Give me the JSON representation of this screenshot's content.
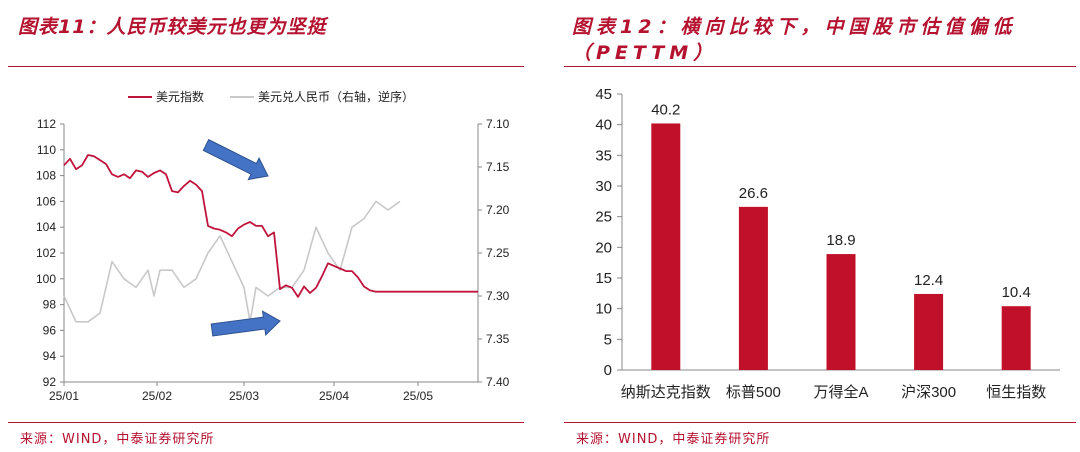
{
  "left": {
    "title": "图表11：人民币较美元也更为坚挺",
    "source": "来源：WIND，中泰证券研究所"
  },
  "right": {
    "title": "图表12：横向比较下，中国股市估值偏低（PETTM）",
    "source": "来源：WIND，中泰证券研究所"
  },
  "colors": {
    "accent": "#b5122f",
    "usd_index": "#c0143c",
    "usdcny": "#c8c8c8",
    "bar": "#c0102a",
    "arrow": "#4472c4"
  },
  "chart_data": [
    {
      "type": "line",
      "title": "",
      "xlabel": "",
      "ylabel": "",
      "x_tick_labels": [
        "25/01",
        "25/02",
        "25/03",
        "25/04",
        "25/05"
      ],
      "ylim": [
        92,
        112
      ],
      "yticks": [
        92,
        94,
        96,
        98,
        100,
        102,
        104,
        106,
        108,
        110,
        112
      ],
      "y2lim": [
        7.1,
        7.4
      ],
      "y2_inverted": true,
      "y2ticks": [
        "7.10",
        "7.15",
        "7.20",
        "7.25",
        "7.30",
        "7.35",
        "7.40"
      ],
      "legend_position": "top",
      "grid": false,
      "series": [
        {
          "name": "美元指数",
          "axis": "left",
          "x": [
            0,
            2,
            4,
            6,
            8,
            10,
            12,
            14,
            16,
            18,
            20,
            22,
            24,
            26,
            28,
            30,
            32,
            34,
            36,
            38,
            40,
            42,
            44,
            46,
            48,
            50,
            52,
            54,
            56,
            58,
            60,
            62,
            64,
            66,
            68,
            70,
            72,
            74,
            76,
            78,
            80,
            82,
            84,
            86,
            88,
            90,
            92,
            94,
            96,
            98,
            100,
            102,
            104,
            106,
            108,
            110,
            112,
            114,
            116,
            118,
            120,
            122,
            124,
            126,
            128,
            130,
            132,
            134,
            136,
            138
          ],
          "values": [
            108.8,
            109.3,
            108.5,
            108.8,
            109.6,
            109.5,
            109.2,
            108.9,
            108.1,
            107.9,
            108.1,
            107.8,
            108.4,
            108.3,
            107.9,
            108.2,
            108.4,
            108.1,
            106.8,
            106.7,
            107.2,
            107.6,
            107.3,
            106.8,
            104.1,
            103.9,
            103.8,
            103.6,
            103.3,
            103.9,
            104.2,
            104.4,
            104.1,
            104.1,
            103.3,
            103.6,
            99.2,
            99.5,
            99.3,
            98.6,
            99.4,
            98.9,
            99.3,
            100.2,
            101.2,
            101.0,
            100.8,
            100.6,
            100.6,
            100.1,
            99.4,
            99.1,
            99.0,
            99.0,
            99.0,
            99.0,
            99.0,
            99.0,
            99.0,
            99.0,
            99.0,
            99.0,
            99.0,
            99.0,
            99.0,
            99.0,
            99.0,
            99.0,
            99.0,
            99.0
          ]
        },
        {
          "name": "美元兑人民币（右轴，逆序）",
          "axis": "right",
          "x": [
            0,
            4,
            8,
            12,
            16,
            18,
            20,
            24,
            28,
            30,
            32,
            36,
            40,
            44,
            48,
            52,
            56,
            60,
            62,
            64,
            68,
            72,
            76,
            80,
            84,
            88,
            92,
            96,
            100,
            104,
            108,
            112
          ],
          "values": [
            7.3,
            7.33,
            7.33,
            7.32,
            7.26,
            7.27,
            7.28,
            7.29,
            7.27,
            7.3,
            7.27,
            7.27,
            7.29,
            7.28,
            7.25,
            7.23,
            7.26,
            7.29,
            7.33,
            7.29,
            7.3,
            7.29,
            7.29,
            7.27,
            7.22,
            7.25,
            7.27,
            7.22,
            7.21,
            7.19,
            7.2,
            7.19
          ]
        }
      ]
    },
    {
      "type": "bar",
      "title": "",
      "xlabel": "",
      "ylabel": "",
      "categories": [
        "纳斯达克指数",
        "标普500",
        "万得全A",
        "沪深300",
        "恒生指数"
      ],
      "values": [
        40.2,
        26.6,
        18.9,
        12.4,
        10.4
      ],
      "data_labels": [
        "40.2",
        "26.6",
        "18.9",
        "12.4",
        "10.4"
      ],
      "ylim": [
        0,
        45
      ],
      "yticks": [
        0,
        5,
        10,
        15,
        20,
        25,
        30,
        35,
        40,
        45
      ],
      "grid": false
    }
  ]
}
